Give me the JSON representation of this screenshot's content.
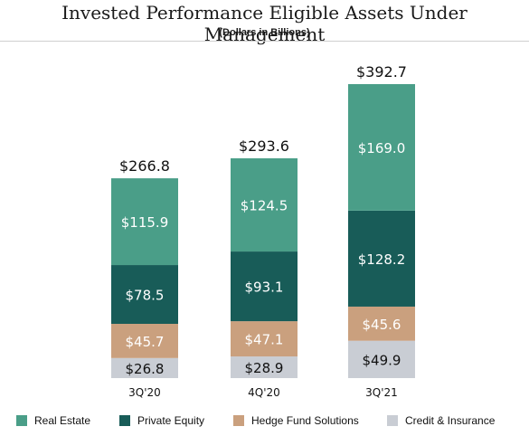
{
  "header": {
    "title": "Invested Performance Eligible Assets Under Management",
    "subtitle": "(Dollars in Billions)"
  },
  "chart_data": {
    "type": "bar",
    "stacked": true,
    "categories": [
      "3Q'20",
      "4Q'20",
      "3Q'21"
    ],
    "totals": [
      "$266.8",
      "$293.6",
      "$392.7"
    ],
    "series": [
      {
        "name": "Credit & Insurance",
        "color": "#c9cdd4",
        "values": [
          26.8,
          28.9,
          49.9
        ],
        "labels": [
          "$26.8",
          "$28.9",
          "$49.9"
        ],
        "label_color": "dark"
      },
      {
        "name": "Hedge Fund Solutions",
        "color": "#caa07e",
        "values": [
          45.7,
          47.1,
          45.6
        ],
        "labels": [
          "$45.7",
          "$47.1",
          "$45.6"
        ],
        "label_color": "light"
      },
      {
        "name": "Private Equity",
        "color": "#185c58",
        "values": [
          78.5,
          93.1,
          128.2
        ],
        "labels": [
          "$78.5",
          "$93.1",
          "$128.2"
        ],
        "label_color": "light"
      },
      {
        "name": "Real Estate",
        "color": "#4a9e88",
        "values": [
          115.9,
          124.5,
          169.0
        ],
        "labels": [
          "$115.9",
          "$124.5",
          "$169.0"
        ],
        "label_color": "light"
      }
    ],
    "legend_order": [
      "Real Estate",
      "Private Equity",
      "Hedge Fund Solutions",
      "Credit & Insurance"
    ],
    "legend_position": "bottom",
    "grid": false
  }
}
